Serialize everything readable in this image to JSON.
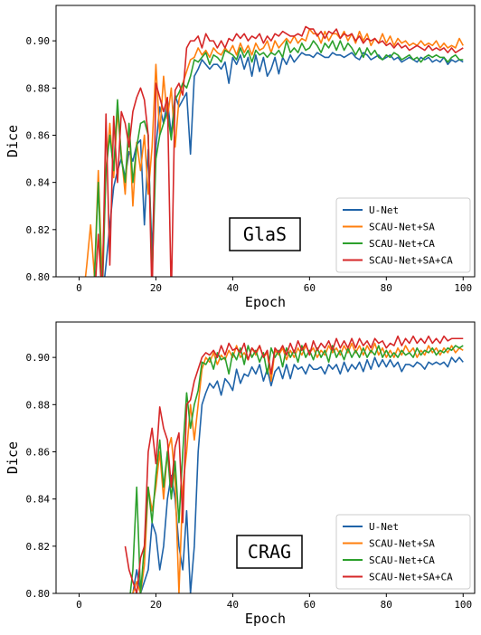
{
  "colors": {
    "U-Net": "#1f63a8",
    "SCAU-Net+SA": "#ff7f0e",
    "SCAU-Net+CA": "#2ca02c",
    "SCAU-Net+SA+CA": "#d62728"
  },
  "chart_data": [
    {
      "type": "line",
      "dataset_label": "GlaS",
      "xlabel": "Epoch",
      "ylabel": "Dice",
      "xlim": [
        -6,
        103
      ],
      "ylim": [
        0.8,
        0.915
      ],
      "xticks": [
        0,
        20,
        40,
        60,
        80,
        100
      ],
      "yticks": [
        0.8,
        0.82,
        0.84,
        0.86,
        0.88,
        0.9
      ],
      "grid": false,
      "legend_position": "lower-right",
      "series": [
        {
          "name": "U-Net",
          "x_start": 1,
          "values": [
            0.79,
            0.79,
            0.79,
            0.79,
            0.8,
            0.79,
            0.805,
            0.822,
            0.838,
            0.845,
            0.85,
            0.842,
            0.853,
            0.849,
            0.856,
            0.858,
            0.822,
            0.854,
            0.81,
            0.855,
            0.872,
            0.865,
            0.875,
            0.86,
            0.877,
            0.872,
            0.875,
            0.878,
            0.852,
            0.885,
            0.888,
            0.892,
            0.89,
            0.888,
            0.89,
            0.89,
            0.888,
            0.891,
            0.882,
            0.893,
            0.89,
            0.894,
            0.888,
            0.893,
            0.885,
            0.894,
            0.887,
            0.893,
            0.885,
            0.888,
            0.893,
            0.886,
            0.893,
            0.89,
            0.894,
            0.891,
            0.893,
            0.895,
            0.894,
            0.894,
            0.893,
            0.895,
            0.894,
            0.893,
            0.893,
            0.895,
            0.894,
            0.894,
            0.893,
            0.894,
            0.895,
            0.893,
            0.892,
            0.895,
            0.894,
            0.892,
            0.893,
            0.894,
            0.892,
            0.893,
            0.894,
            0.892,
            0.893,
            0.891,
            0.892,
            0.893,
            0.892,
            0.891,
            0.893,
            0.892,
            0.893,
            0.891,
            0.892,
            0.891,
            0.893,
            0.89,
            0.892,
            0.891,
            0.892,
            0.891
          ]
        },
        {
          "name": "SCAU-Net+SA",
          "x_start": 1,
          "values": [
            0.79,
            0.805,
            0.822,
            0.8,
            0.845,
            0.8,
            0.845,
            0.865,
            0.842,
            0.87,
            0.852,
            0.835,
            0.865,
            0.83,
            0.857,
            0.845,
            0.86,
            0.835,
            0.855,
            0.89,
            0.86,
            0.885,
            0.867,
            0.88,
            0.855,
            0.875,
            0.882,
            0.887,
            0.892,
            0.893,
            0.897,
            0.894,
            0.896,
            0.893,
            0.897,
            0.895,
            0.894,
            0.897,
            0.895,
            0.898,
            0.894,
            0.899,
            0.895,
            0.898,
            0.894,
            0.899,
            0.896,
            0.897,
            0.9,
            0.895,
            0.9,
            0.897,
            0.899,
            0.901,
            0.899,
            0.902,
            0.899,
            0.901,
            0.9,
            0.905,
            0.903,
            0.903,
            0.899,
            0.904,
            0.9,
            0.903,
            0.903,
            0.901,
            0.904,
            0.9,
            0.903,
            0.899,
            0.904,
            0.9,
            0.903,
            0.898,
            0.901,
            0.899,
            0.903,
            0.899,
            0.902,
            0.898,
            0.901,
            0.899,
            0.9,
            0.898,
            0.899,
            0.898,
            0.9,
            0.898,
            0.899,
            0.898,
            0.9,
            0.897,
            0.899,
            0.897,
            0.898,
            0.897,
            0.901,
            0.898
          ]
        },
        {
          "name": "SCAU-Net+CA",
          "x_start": 1,
          "values": [
            0.79,
            0.79,
            0.79,
            0.8,
            0.84,
            0.79,
            0.845,
            0.86,
            0.845,
            0.875,
            0.85,
            0.84,
            0.865,
            0.84,
            0.855,
            0.865,
            0.866,
            0.86,
            0.8,
            0.85,
            0.86,
            0.865,
            0.87,
            0.858,
            0.875,
            0.878,
            0.882,
            0.88,
            0.885,
            0.892,
            0.891,
            0.893,
            0.895,
            0.89,
            0.894,
            0.893,
            0.891,
            0.896,
            0.895,
            0.894,
            0.892,
            0.897,
            0.893,
            0.896,
            0.891,
            0.896,
            0.894,
            0.895,
            0.893,
            0.895,
            0.894,
            0.896,
            0.893,
            0.9,
            0.895,
            0.897,
            0.895,
            0.899,
            0.896,
            0.897,
            0.9,
            0.898,
            0.895,
            0.899,
            0.897,
            0.9,
            0.896,
            0.9,
            0.896,
            0.899,
            0.897,
            0.894,
            0.897,
            0.893,
            0.897,
            0.894,
            0.896,
            0.893,
            0.892,
            0.894,
            0.893,
            0.895,
            0.894,
            0.892,
            0.893,
            0.894,
            0.892,
            0.893,
            0.891,
            0.893,
            0.894,
            0.893,
            0.894,
            0.893,
            0.893,
            0.891,
            0.893,
            0.894,
            0.892,
            0.892
          ]
        },
        {
          "name": "SCAU-Net+SA+CA",
          "x_start": 1,
          "values": [
            0.79,
            0.79,
            0.79,
            0.79,
            0.818,
            0.79,
            0.869,
            0.805,
            0.868,
            0.84,
            0.87,
            0.865,
            0.855,
            0.87,
            0.876,
            0.88,
            0.875,
            0.86,
            0.79,
            0.882,
            0.876,
            0.87,
            0.876,
            0.79,
            0.879,
            0.882,
            0.877,
            0.897,
            0.9,
            0.9,
            0.902,
            0.897,
            0.903,
            0.9,
            0.9,
            0.897,
            0.9,
            0.897,
            0.901,
            0.9,
            0.903,
            0.901,
            0.903,
            0.9,
            0.902,
            0.901,
            0.903,
            0.899,
            0.902,
            0.9,
            0.903,
            0.902,
            0.904,
            0.903,
            0.902,
            0.902,
            0.903,
            0.902,
            0.906,
            0.905,
            0.905,
            0.902,
            0.904,
            0.901,
            0.904,
            0.903,
            0.905,
            0.901,
            0.903,
            0.902,
            0.903,
            0.9,
            0.902,
            0.899,
            0.901,
            0.9,
            0.901,
            0.899,
            0.9,
            0.898,
            0.899,
            0.897,
            0.899,
            0.897,
            0.898,
            0.896,
            0.897,
            0.898,
            0.897,
            0.896,
            0.898,
            0.896,
            0.897,
            0.896,
            0.897,
            0.895,
            0.897,
            0.895,
            0.896,
            0.897
          ]
        }
      ]
    },
    {
      "type": "line",
      "dataset_label": "CRAG",
      "xlabel": "Epoch",
      "ylabel": "Dice",
      "xlim": [
        -6,
        103
      ],
      "ylim": [
        0.8,
        0.915
      ],
      "xticks": [
        0,
        20,
        40,
        60,
        80,
        100
      ],
      "yticks": [
        0.8,
        0.82,
        0.84,
        0.86,
        0.88,
        0.9
      ],
      "grid": false,
      "legend_position": "lower-right",
      "series": [
        {
          "name": "U-Net",
          "x_start": 12,
          "values": [
            0.795,
            0.79,
            0.8,
            0.81,
            0.8,
            0.805,
            0.81,
            0.83,
            0.825,
            0.81,
            0.82,
            0.84,
            0.85,
            0.84,
            0.82,
            0.81,
            0.835,
            0.8,
            0.82,
            0.86,
            0.88,
            0.885,
            0.889,
            0.887,
            0.89,
            0.884,
            0.891,
            0.889,
            0.886,
            0.895,
            0.889,
            0.893,
            0.892,
            0.896,
            0.893,
            0.897,
            0.89,
            0.895,
            0.888,
            0.894,
            0.896,
            0.891,
            0.897,
            0.891,
            0.897,
            0.895,
            0.896,
            0.893,
            0.897,
            0.895,
            0.895,
            0.896,
            0.893,
            0.897,
            0.895,
            0.897,
            0.893,
            0.898,
            0.894,
            0.897,
            0.895,
            0.898,
            0.894,
            0.899,
            0.895,
            0.9,
            0.896,
            0.899,
            0.896,
            0.899,
            0.896,
            0.898,
            0.894,
            0.897,
            0.897,
            0.896,
            0.898,
            0.897,
            0.895,
            0.898,
            0.897,
            0.898,
            0.897,
            0.898,
            0.896,
            0.9,
            0.898,
            0.9,
            0.898
          ]
        },
        {
          "name": "SCAU-Net+SA",
          "x_start": 12,
          "values": [
            0.795,
            0.79,
            0.8,
            0.805,
            0.8,
            0.812,
            0.845,
            0.835,
            0.845,
            0.86,
            0.84,
            0.86,
            0.866,
            0.848,
            0.8,
            0.845,
            0.86,
            0.88,
            0.865,
            0.88,
            0.895,
            0.9,
            0.898,
            0.902,
            0.897,
            0.901,
            0.899,
            0.903,
            0.9,
            0.905,
            0.9,
            0.902,
            0.899,
            0.904,
            0.901,
            0.905,
            0.9,
            0.902,
            0.89,
            0.903,
            0.901,
            0.904,
            0.899,
            0.903,
            0.9,
            0.904,
            0.901,
            0.905,
            0.902,
            0.904,
            0.9,
            0.903,
            0.901,
            0.905,
            0.902,
            0.904,
            0.901,
            0.905,
            0.902,
            0.906,
            0.902,
            0.905,
            0.901,
            0.905,
            0.902,
            0.906,
            0.901,
            0.904,
            0.9,
            0.903,
            0.9,
            0.904,
            0.901,
            0.905,
            0.902,
            0.904,
            0.9,
            0.903,
            0.901,
            0.905,
            0.902,
            0.904,
            0.901,
            0.904,
            0.902,
            0.905,
            0.902,
            0.904,
            0.903
          ]
        },
        {
          "name": "SCAU-Net+CA",
          "x_start": 12,
          "values": [
            0.79,
            0.795,
            0.81,
            0.845,
            0.8,
            0.82,
            0.845,
            0.83,
            0.85,
            0.865,
            0.845,
            0.86,
            0.84,
            0.856,
            0.83,
            0.86,
            0.885,
            0.87,
            0.88,
            0.886,
            0.898,
            0.897,
            0.9,
            0.895,
            0.902,
            0.899,
            0.9,
            0.893,
            0.902,
            0.899,
            0.904,
            0.897,
            0.905,
            0.9,
            0.903,
            0.898,
            0.902,
            0.893,
            0.904,
            0.9,
            0.903,
            0.896,
            0.904,
            0.9,
            0.903,
            0.898,
            0.905,
            0.9,
            0.903,
            0.899,
            0.904,
            0.9,
            0.903,
            0.898,
            0.905,
            0.9,
            0.903,
            0.899,
            0.904,
            0.9,
            0.903,
            0.9,
            0.904,
            0.9,
            0.903,
            0.901,
            0.905,
            0.9,
            0.903,
            0.9,
            0.902,
            0.9,
            0.903,
            0.901,
            0.902,
            0.9,
            0.904,
            0.901,
            0.903,
            0.902,
            0.904,
            0.901,
            0.903,
            0.902,
            0.904,
            0.903,
            0.905,
            0.904,
            0.905
          ]
        },
        {
          "name": "SCAU-Net+SA+CA",
          "x_start": 12,
          "values": [
            0.82,
            0.81,
            0.805,
            0.8,
            0.815,
            0.82,
            0.86,
            0.87,
            0.855,
            0.879,
            0.87,
            0.865,
            0.845,
            0.862,
            0.868,
            0.83,
            0.88,
            0.882,
            0.89,
            0.895,
            0.9,
            0.902,
            0.901,
            0.903,
            0.9,
            0.905,
            0.901,
            0.906,
            0.903,
            0.904,
            0.902,
            0.906,
            0.899,
            0.904,
            0.902,
            0.905,
            0.9,
            0.903,
            0.893,
            0.904,
            0.902,
            0.905,
            0.901,
            0.906,
            0.902,
            0.907,
            0.903,
            0.906,
            0.901,
            0.907,
            0.903,
            0.906,
            0.904,
            0.907,
            0.903,
            0.908,
            0.904,
            0.907,
            0.904,
            0.908,
            0.904,
            0.908,
            0.905,
            0.907,
            0.904,
            0.908,
            0.906,
            0.907,
            0.904,
            0.906,
            0.905,
            0.909,
            0.905,
            0.908,
            0.906,
            0.909,
            0.906,
            0.908,
            0.906,
            0.909,
            0.906,
            0.908,
            0.906,
            0.909,
            0.907,
            0.908,
            0.908,
            0.908,
            0.908
          ]
        }
      ]
    }
  ]
}
